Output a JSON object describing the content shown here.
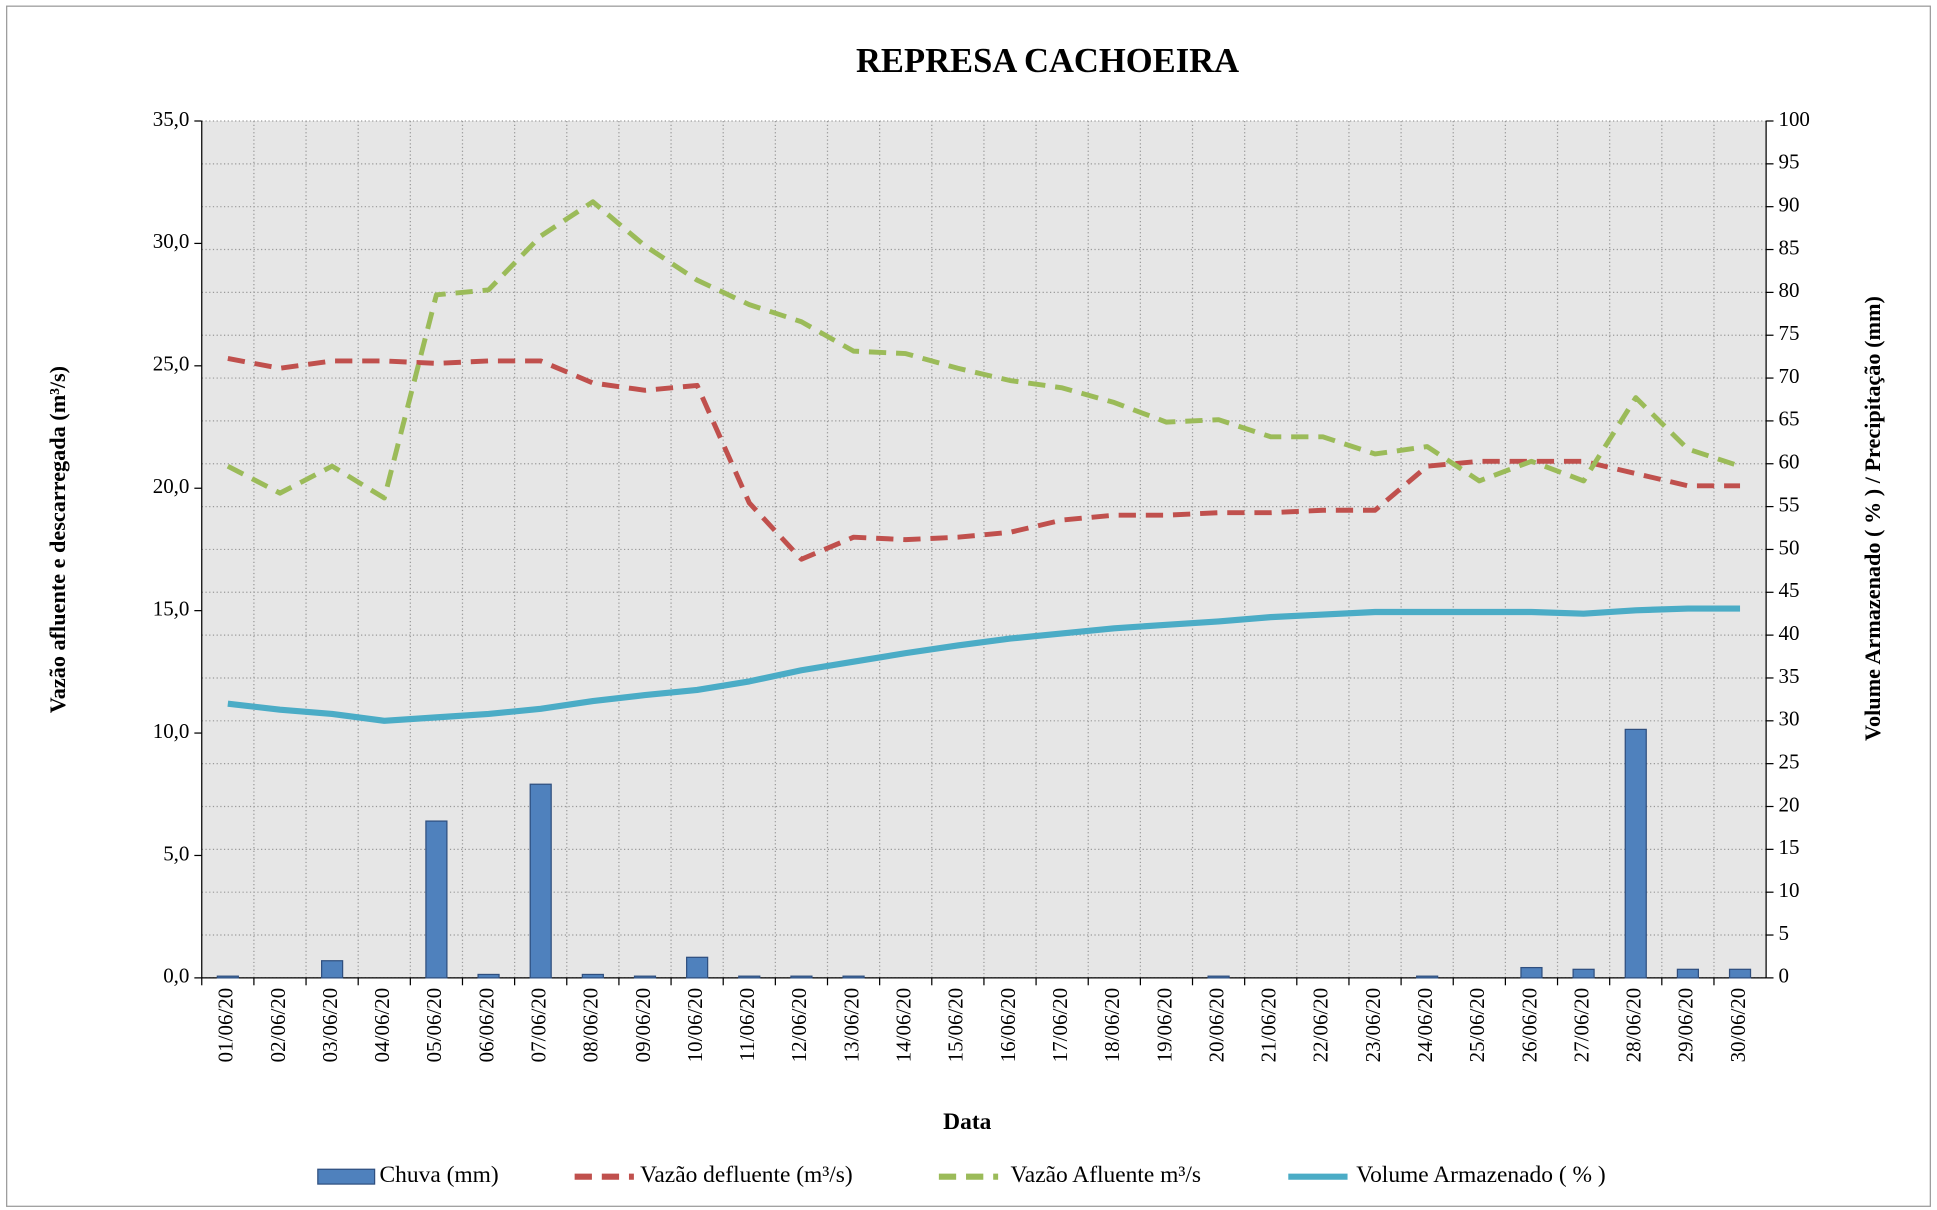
{
  "chart_data": {
    "type": "bar-line",
    "title": "REPRESA CACHOEIRA",
    "x_label": "Data",
    "y_label": "Vazão afluente e descarregada (m³/s)",
    "y2_label": "Volume Armazenado ( % ) / Precipitação  (mm)",
    "categories": [
      "01/06/20",
      "02/06/20",
      "03/06/20",
      "04/06/20",
      "05/06/20",
      "06/06/20",
      "07/06/20",
      "08/06/20",
      "09/06/20",
      "10/06/20",
      "11/06/20",
      "12/06/20",
      "13/06/20",
      "14/06/20",
      "15/06/20",
      "16/06/20",
      "17/06/20",
      "18/06/20",
      "19/06/20",
      "20/06/20",
      "21/06/20",
      "22/06/20",
      "23/06/20",
      "24/06/20",
      "25/06/20",
      "26/06/20",
      "27/06/20",
      "28/06/20",
      "29/06/20",
      "30/06/20"
    ],
    "ylim": [
      0,
      35
    ],
    "yticks": [
      {
        "value": 0,
        "label": "0,0"
      },
      {
        "value": 5,
        "label": "5,0"
      },
      {
        "value": 10,
        "label": "10,0"
      },
      {
        "value": 15,
        "label": "15,0"
      },
      {
        "value": 20,
        "label": "20,0"
      },
      {
        "value": 25,
        "label": "25,0"
      },
      {
        "value": 30,
        "label": "30,0"
      },
      {
        "value": 35,
        "label": "35,0"
      }
    ],
    "y2lim": [
      0,
      100
    ],
    "y2ticks": [
      0,
      5,
      10,
      15,
      20,
      25,
      30,
      35,
      40,
      45,
      50,
      55,
      60,
      65,
      70,
      75,
      80,
      85,
      90,
      95,
      100
    ],
    "grid": true,
    "series": [
      {
        "name": "Chuva (mm)",
        "type": "bar",
        "axis": "y2",
        "color": "#4f81bd",
        "values": [
          0.2,
          0,
          2.0,
          0,
          18.3,
          0.4,
          22.6,
          0.4,
          0.2,
          2.4,
          0.2,
          0.2,
          0.2,
          0,
          0,
          0,
          0,
          0,
          0,
          0.2,
          0,
          0,
          0,
          0.2,
          0,
          1.2,
          1.0,
          29.0,
          1.0,
          1.0
        ]
      },
      {
        "name": "Vazão defluente (m³/s)",
        "type": "dashed-line",
        "color": "#c0504d",
        "values": [
          25.3,
          24.9,
          25.2,
          25.2,
          25.1,
          25.2,
          25.2,
          24.3,
          24.0,
          24.2,
          19.4,
          17.1,
          18.0,
          17.9,
          18.0,
          18.2,
          18.7,
          18.9,
          18.9,
          19.0,
          19.0,
          19.1,
          19.1,
          20.9,
          21.1,
          21.1,
          21.1,
          20.6,
          20.1,
          20.1
        ]
      },
      {
        "name": "Vazão Afluente m³/s",
        "type": "dashed-line",
        "color": "#9bbb59",
        "values": [
          20.9,
          19.8,
          20.9,
          19.6,
          27.9,
          28.1,
          30.3,
          31.7,
          29.9,
          28.5,
          27.5,
          26.8,
          25.6,
          25.5,
          24.9,
          24.4,
          24.1,
          23.5,
          22.7,
          22.8,
          22.1,
          22.1,
          21.4,
          21.7,
          20.3,
          21.1,
          20.3,
          23.7,
          21.6,
          20.9
        ]
      },
      {
        "name": "Volume Armazenado ( % )",
        "type": "line",
        "axis": "y2",
        "color": "#4bacc6",
        "values": [
          32.0,
          31.3,
          30.8,
          30.0,
          30.4,
          30.8,
          31.4,
          32.3,
          33.0,
          33.6,
          34.6,
          35.9,
          36.9,
          37.9,
          38.8,
          39.6,
          40.2,
          40.8,
          41.2,
          41.6,
          42.1,
          42.4,
          42.7,
          42.7,
          42.7,
          42.7,
          42.5,
          42.9,
          43.1,
          43.1
        ]
      }
    ]
  }
}
